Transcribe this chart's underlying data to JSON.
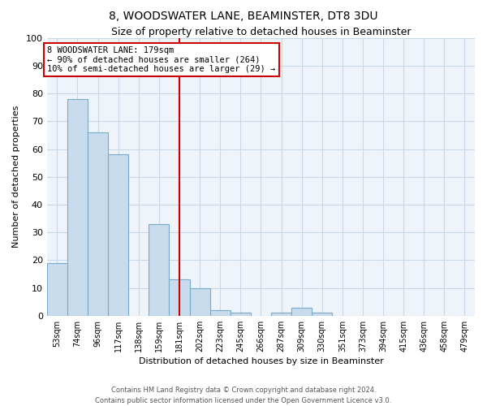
{
  "title": "8, WOODSWATER LANE, BEAMINSTER, DT8 3DU",
  "subtitle": "Size of property relative to detached houses in Beaminster",
  "xlabel": "Distribution of detached houses by size in Beaminster",
  "ylabel": "Number of detached properties",
  "bar_labels": [
    "53sqm",
    "74sqm",
    "96sqm",
    "117sqm",
    "138sqm",
    "159sqm",
    "181sqm",
    "202sqm",
    "223sqm",
    "245sqm",
    "266sqm",
    "287sqm",
    "309sqm",
    "330sqm",
    "351sqm",
    "373sqm",
    "394sqm",
    "415sqm",
    "436sqm",
    "458sqm",
    "479sqm"
  ],
  "bar_values": [
    19,
    78,
    66,
    58,
    0,
    33,
    13,
    10,
    2,
    1,
    0,
    1,
    3,
    1,
    0,
    0,
    0,
    0,
    0,
    0,
    0
  ],
  "bar_color": "#c8dced",
  "bar_edge_color": "#7aaac8",
  "property_line_index": 6,
  "property_line_label": "8 WOODSWATER LANE: 179sqm",
  "annotation_smaller": "← 90% of detached houses are smaller (264)",
  "annotation_larger": "10% of semi-detached houses are larger (29) →",
  "vline_color": "#cc0000",
  "footer1": "Contains HM Land Registry data © Crown copyright and database right 2024.",
  "footer2": "Contains public sector information licensed under the Open Government Licence v3.0.",
  "ylim": [
    0,
    100
  ],
  "yticks": [
    0,
    10,
    20,
    30,
    40,
    50,
    60,
    70,
    80,
    90,
    100
  ],
  "figsize": [
    6.0,
    5.0
  ],
  "dpi": 100,
  "grid_color": "#c8d8e8",
  "bg_color": "#eef4f9"
}
